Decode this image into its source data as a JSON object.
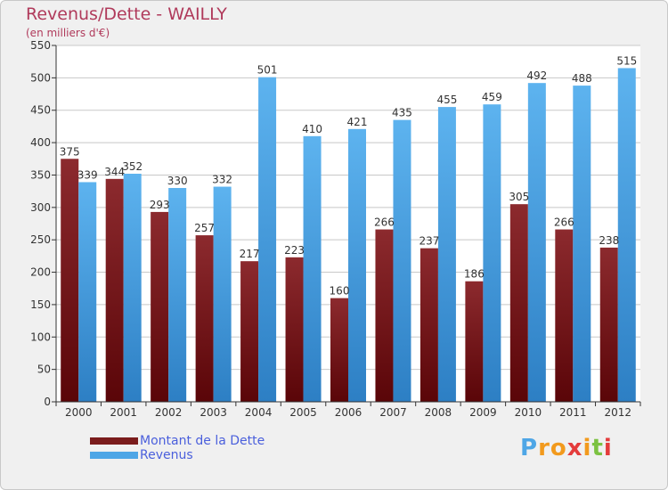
{
  "header": {
    "title": "Revenus/Dette - WAILLY",
    "subtitle": "(en milliers d'€)"
  },
  "chart_data": {
    "type": "bar",
    "title": "Revenus/Dette - WAILLY",
    "ylabel": "(en milliers d'€)",
    "xlabel": "",
    "categories": [
      "2000",
      "2001",
      "2002",
      "2003",
      "2004",
      "2005",
      "2006",
      "2007",
      "2008",
      "2009",
      "2010",
      "2011",
      "2012"
    ],
    "series": [
      {
        "name": "Montant de la Dette",
        "color": "#7a1c1c",
        "values": [
          375,
          344,
          293,
          257,
          217,
          223,
          160,
          266,
          237,
          186,
          305,
          266,
          238
        ]
      },
      {
        "name": "Revenus",
        "color": "#4ea6e6",
        "values": [
          339,
          352,
          330,
          332,
          501,
          410,
          421,
          435,
          455,
          459,
          492,
          488,
          515
        ]
      }
    ],
    "ylim": [
      0,
      550
    ],
    "yticks": [
      0,
      50,
      100,
      150,
      200,
      250,
      300,
      350,
      400,
      450,
      500,
      550
    ],
    "grid": true,
    "legend": "bottom-left"
  },
  "legend": {
    "items": [
      {
        "label": "Montant de la Dette",
        "color": "#7a1c1c"
      },
      {
        "label": "Revenus",
        "color": "#4ea6e6"
      }
    ]
  },
  "logo": {
    "text": "Proxiti"
  }
}
